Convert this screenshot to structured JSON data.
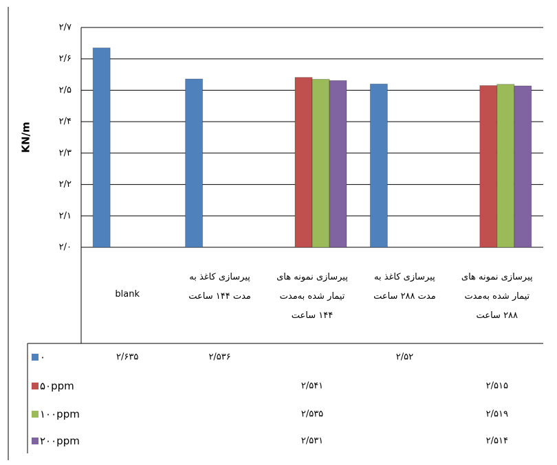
{
  "chart_data": {
    "type": "bar",
    "y_label": "KN/m",
    "categories": [
      "blank",
      "پیرسازی کاغذ به\nمدت ۱۴۴ ساعت",
      "پیرسازی نمونه های\nتیمار شده به‌مدت\n۱۴۴ ساعت",
      "پیرسازی کاغذ به\nمدت ۲۸۸ ساعت",
      "پیرسازی نمونه های\nتیمار شده به‌مدت\n۲۸۸ ساعت"
    ],
    "series": [
      {
        "name": "۰",
        "color": "#4f81bd",
        "values": [
          2.635,
          2.536,
          null,
          2.52,
          null
        ],
        "value_labels": [
          "۲/۶۳۵",
          "۲/۵۳۶",
          null,
          "۲/۵۲",
          null
        ]
      },
      {
        "name": "۵۰ppm",
        "color": "#c0504d",
        "values": [
          null,
          null,
          2.541,
          null,
          2.515
        ],
        "value_labels": [
          null,
          null,
          "۲/۵۴۱",
          null,
          "۲/۵۱۵"
        ]
      },
      {
        "name": "۱۰۰ppm",
        "color": "#9bbb59",
        "values": [
          null,
          null,
          2.535,
          null,
          2.519
        ],
        "value_labels": [
          null,
          null,
          "۲/۵۳۵",
          null,
          "۲/۵۱۹"
        ]
      },
      {
        "name": "۲۰۰ppm",
        "color": "#8064a2",
        "values": [
          null,
          null,
          2.531,
          null,
          2.514
        ],
        "value_labels": [
          null,
          null,
          "۲/۵۳۱",
          null,
          "۲/۵۱۴"
        ]
      }
    ],
    "ylim": [
      2.0,
      2.7
    ],
    "yticks": [
      {
        "value": 2.0,
        "label": "۲/۰"
      },
      {
        "value": 2.1,
        "label": "۲/۱"
      },
      {
        "value": 2.2,
        "label": "۲/۲"
      },
      {
        "value": 2.3,
        "label": "۲/۳"
      },
      {
        "value": 2.4,
        "label": "۲/۴"
      },
      {
        "value": 2.5,
        "label": "۲/۵"
      },
      {
        "value": 2.6,
        "label": "۲/۶"
      },
      {
        "value": 2.7,
        "label": "۲/۷"
      }
    ],
    "grid": true
  }
}
